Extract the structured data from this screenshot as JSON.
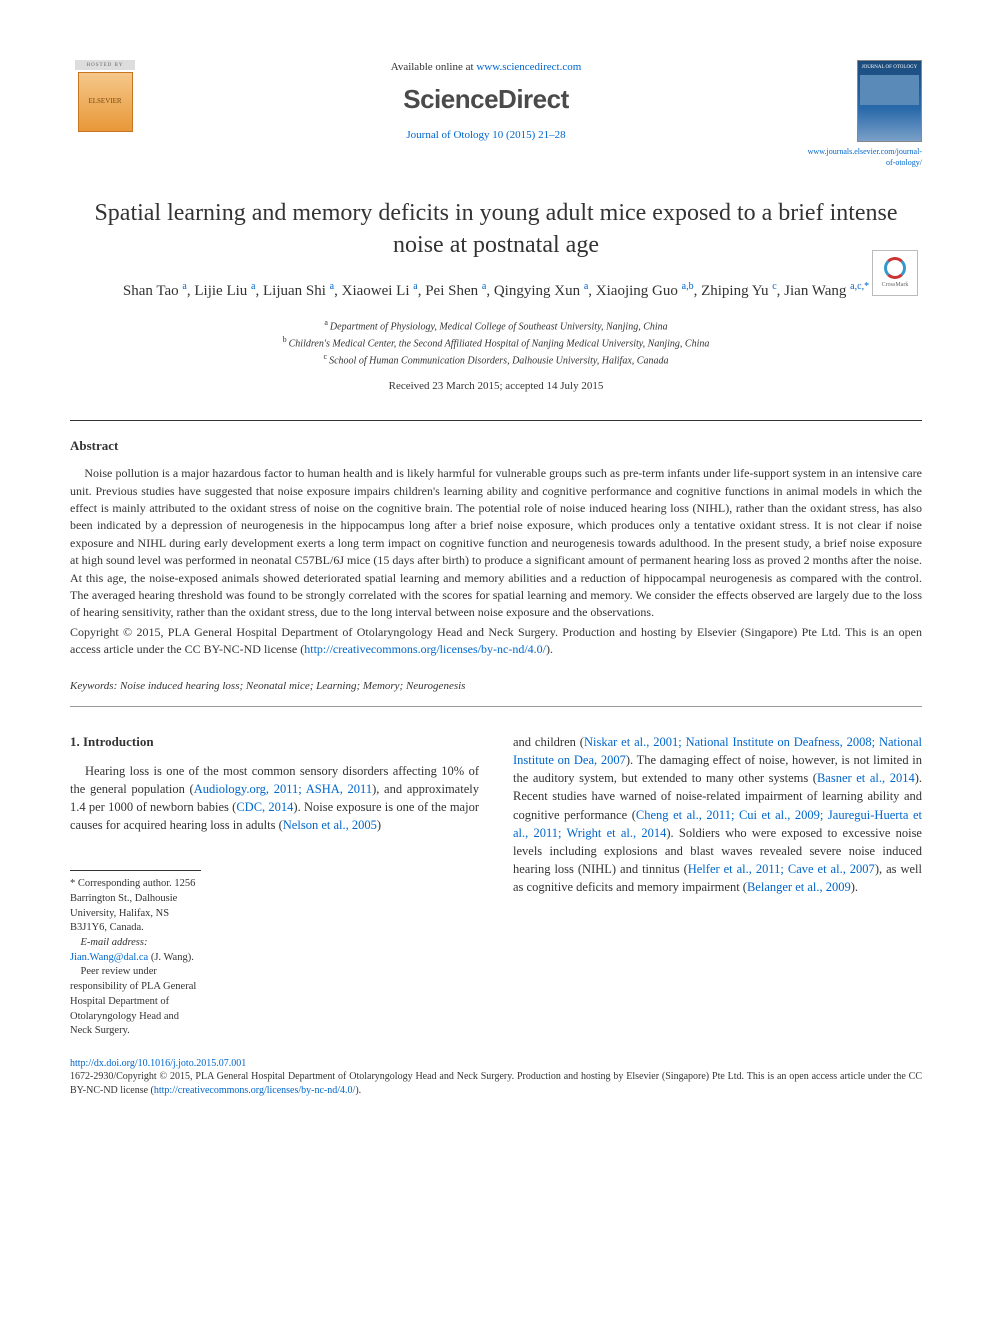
{
  "header": {
    "hosted_by": "HOSTED BY",
    "elsevier_label": "ELSEVIER",
    "available_prefix": "Available online at ",
    "available_url": "www.sciencedirect.com",
    "sd_logo": "ScienceDirect",
    "journal_ref": "Journal of Otology 10 (2015) 21–28",
    "journal_home": "www.journals.elsevier.com/journal-of-otology/",
    "cover_title": "JOURNAL OF OTOLOGY"
  },
  "crossmark": "CrossMark",
  "article": {
    "title": "Spatial learning and memory deficits in young adult mice exposed to a brief intense noise at postnatal age",
    "authors_html": "Shan Tao|a|, Lijie Liu|a|, Lijuan Shi|a|, Xiaowei Li|a|, Pei Shen|a|, Qingying Xun|a|, Xiaojing Guo|a,b|, Zhiping Yu|c|, Jian Wang|a,c,*|",
    "affiliations": [
      {
        "key": "a",
        "text": "Department of Physiology, Medical College of Southeast University, Nanjing, China"
      },
      {
        "key": "b",
        "text": "Children's Medical Center, the Second Affiliated Hospital of Nanjing Medical University, Nanjing, China"
      },
      {
        "key": "c",
        "text": "School of Human Communication Disorders, Dalhousie University, Halifax, Canada"
      }
    ],
    "dates": "Received 23 March 2015; accepted 14 July 2015"
  },
  "abstract": {
    "heading": "Abstract",
    "body": "Noise pollution is a major hazardous factor to human health and is likely harmful for vulnerable groups such as pre-term infants under life-support system in an intensive care unit. Previous studies have suggested that noise exposure impairs children's learning ability and cognitive performance and cognitive functions in animal models in which the effect is mainly attributed to the oxidant stress of noise on the cognitive brain. The potential role of noise induced hearing loss (NIHL), rather than the oxidant stress, has also been indicated by a depression of neurogenesis in the hippocampus long after a brief noise exposure, which produces only a tentative oxidant stress. It is not clear if noise exposure and NIHL during early development exerts a long term impact on cognitive function and neurogenesis towards adulthood. In the present study, a brief noise exposure at high sound level was performed in neonatal C57BL/6J mice (15 days after birth) to produce a significant amount of permanent hearing loss as proved 2 months after the noise. At this age, the noise-exposed animals showed deteriorated spatial learning and memory abilities and a reduction of hippocampal neurogenesis as compared with the control. The averaged hearing threshold was found to be strongly correlated with the scores for spatial learning and memory. We consider the effects observed are largely due to the loss of hearing sensitivity, rather than the oxidant stress, due to the long interval between noise exposure and the observations.",
    "copyright": "Copyright © 2015, PLA General Hospital Department of Otolaryngology Head and Neck Surgery. Production and hosting by Elsevier (Singapore) Pte Ltd. This is an open access article under the CC BY-NC-ND license (",
    "license_url": "http://creativecommons.org/licenses/by-nc-nd/4.0/",
    "copyright_suffix": ")."
  },
  "keywords": {
    "label": "Keywords:",
    "text": " Noise induced hearing loss; Neonatal mice; Learning; Memory; Neurogenesis"
  },
  "intro": {
    "heading": "1. Introduction",
    "col1_p1_a": "Hearing loss is one of the most common sensory disorders affecting 10% of the general population (",
    "col1_p1_link1": "Audiology.org, 2011; ASHA, 2011",
    "col1_p1_b": "), and approximately 1.4 per 1000 of newborn babies (",
    "col1_p1_link2": "CDC, 2014",
    "col1_p1_c": "). Noise exposure is one of the major causes for acquired hearing loss in adults (",
    "col1_p1_link3": "Nelson et al., 2005",
    "col1_p1_d": ")",
    "col2_p1_a": "and children (",
    "col2_p1_link1": "Niskar et al., 2001; National Institute on Deafness, 2008; National Institute on Dea, 2007",
    "col2_p1_b": "). The damaging effect of noise, however, is not limited in the auditory system, but extended to many other systems (",
    "col2_p1_link2": "Basner et al., 2014",
    "col2_p1_c": "). Recent studies have warned of noise-related impairment of learning ability and cognitive performance (",
    "col2_p1_link3": "Cheng et al., 2011; Cui et al., 2009; Jauregui-Huerta et al., 2011; Wright et al., 2014",
    "col2_p1_d": "). Soldiers who were exposed to excessive noise levels including explosions and blast waves revealed severe noise induced hearing loss (NIHL) and tinnitus (",
    "col2_p1_link4": "Helfer et al., 2011; Cave et al., 2007",
    "col2_p1_e": "), as well as cognitive deficits and memory impairment (",
    "col2_p1_link5": "Belanger et al., 2009",
    "col2_p1_f": ")."
  },
  "corr": {
    "line1_a": "* Corresponding author. 1256 Barrington St., Dalhousie University, Halifax, NS B3J1Y6, Canada.",
    "email_label": "E-mail address:",
    "email": "Jian.Wang@dal.ca",
    "email_suffix": " (J. Wang).",
    "peer": "Peer review under responsibility of PLA General Hospital Department of Otolaryngology Head and Neck Surgery."
  },
  "footer": {
    "doi": "http://dx.doi.org/10.1016/j.joto.2015.07.001",
    "line2_a": "1672-2930/Copyright © 2015, PLA General Hospital Department of Otolaryngology Head and Neck Surgery. Production and hosting by Elsevier (Singapore) Pte Ltd. This is an open access article under the CC BY-NC-ND license (",
    "line2_url": "http://creativecommons.org/licenses/by-nc-nd/4.0/",
    "line2_b": ")."
  },
  "colors": {
    "link": "#0066cc",
    "text": "#333333",
    "rule": "#333333"
  }
}
